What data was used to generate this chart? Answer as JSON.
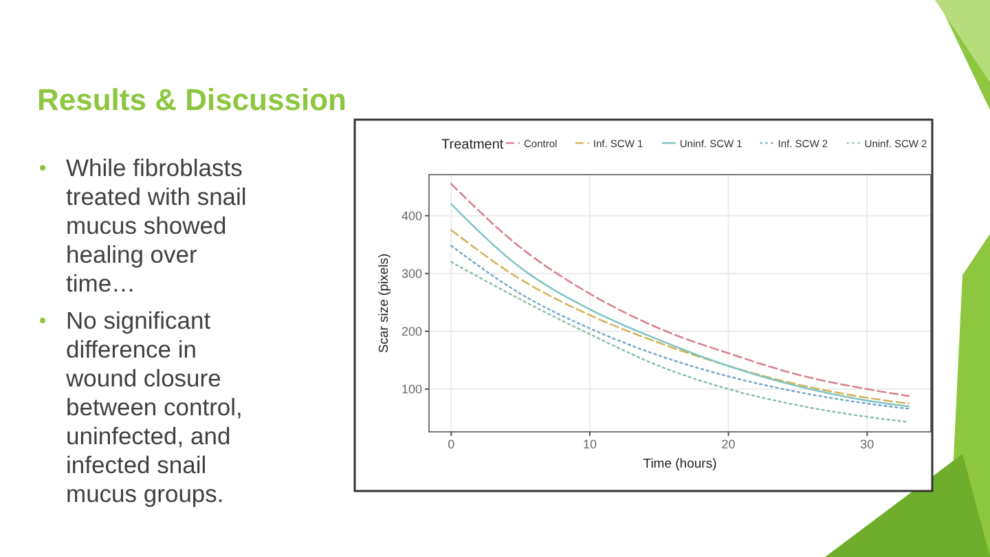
{
  "chart_data": {
    "type": "line",
    "title": "Results & Discussion",
    "legend_title": "Treatment",
    "xlabel": "Time (hours)",
    "ylabel": "Scar size (pixels)",
    "annotations": [
      "While fibroblasts treated with snail mucus showed healing over time…",
      "No significant difference in wound closure between control, uninfected, and infected snail mucus groups."
    ],
    "x": [
      0,
      5,
      10,
      15,
      20,
      25,
      30,
      33
    ],
    "series": [
      {
        "name": "Control",
        "color": "#d9808f",
        "line_style": "dashed",
        "values": [
          455,
          345,
          265,
          205,
          162,
          125,
          100,
          88
        ]
      },
      {
        "name": "Inf. SCW 1",
        "color": "#d4b45a",
        "line_style": "dashed",
        "values": [
          375,
          290,
          228,
          180,
          140,
          108,
          85,
          75
        ]
      },
      {
        "name": "Uninf. SCW 1",
        "color": "#7fc4c4",
        "line_style": "solid",
        "values": [
          420,
          310,
          238,
          185,
          140,
          105,
          80,
          70
        ]
      },
      {
        "name": "Inf. SCW 2",
        "color": "#7aa8c8",
        "line_style": "dotted",
        "values": [
          348,
          265,
          205,
          158,
          122,
          95,
          75,
          66
        ]
      },
      {
        "name": "Uninf. SCW 2",
        "color": "#8fbfa8",
        "line_style": "dotted",
        "values": [
          320,
          255,
          195,
          140,
          100,
          72,
          52,
          43
        ]
      }
    ],
    "xlim": [
      -1.6,
      34.6
    ],
    "ylim": [
      26,
      471
    ],
    "xticks": [
      0,
      10,
      20,
      30
    ],
    "yticks": [
      100,
      200,
      300,
      400
    ],
    "grid": true,
    "legend": "top"
  }
}
